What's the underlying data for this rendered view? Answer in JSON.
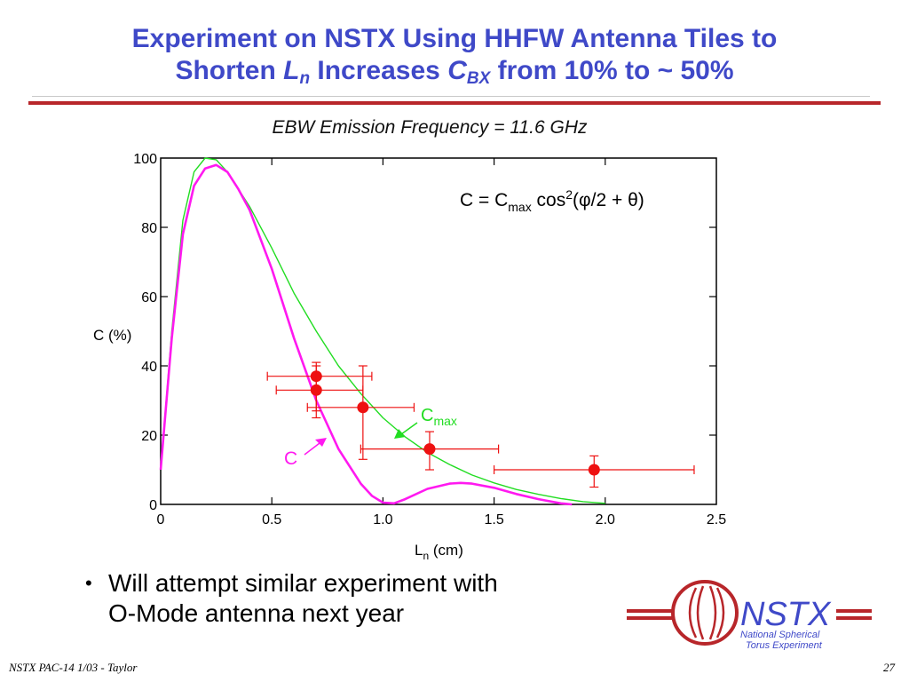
{
  "slide": {
    "title_line1": "Experiment on NSTX Using HHFW Antenna Tiles to",
    "title_line2_a": "Shorten ",
    "title_line2_L": "L",
    "title_line2_n": "n",
    "title_line2_b": " Increases ",
    "title_line2_C": "C",
    "title_line2_BX": "BX",
    "title_line2_c": " from 10% to ~ 50%",
    "bullet_symbol": "•",
    "bullet_line1": "Will attempt similar experiment with",
    "bullet_line2": "O-Mode antenna next year",
    "footer_left": "NSTX PAC-14 1/03 - Taylor",
    "footer_right": "27",
    "logo": {
      "name": "NSTX",
      "line1": "National Spherical",
      "line2": "Torus Experiment"
    }
  },
  "colors": {
    "title": "#3f49c8",
    "rule": "#b8262a",
    "c_curve": "#ff19f0",
    "cmax_curve": "#22dd22",
    "points": "#ee1111"
  },
  "chart_data": {
    "type": "scatter",
    "title": "EBW Emission Frequency = 11.6 GHz",
    "xlabel_main": "L",
    "xlabel_sub": "n",
    "xlabel_unit": " (cm)",
    "ylabel": "C (%)",
    "xlim": [
      0,
      2.5
    ],
    "ylim": [
      0,
      100
    ],
    "x_ticks": [
      {
        "value": 0,
        "label": "0"
      },
      {
        "value": 0.5,
        "label": "0.5"
      },
      {
        "value": 1.0,
        "label": "1.0"
      },
      {
        "value": 1.5,
        "label": "1.5"
      },
      {
        "value": 2.0,
        "label": "2.0"
      },
      {
        "value": 2.5,
        "label": "2.5"
      }
    ],
    "y_ticks": [
      {
        "value": 0,
        "label": "0"
      },
      {
        "value": 20,
        "label": "20"
      },
      {
        "value": 40,
        "label": "40"
      },
      {
        "value": 60,
        "label": "60"
      },
      {
        "value": 80,
        "label": "80"
      },
      {
        "value": 100,
        "label": "100"
      }
    ],
    "formula": {
      "a": "C = C",
      "sub1": "max",
      "b": " cos",
      "sup": "2",
      "c": "(φ/2 + θ)"
    },
    "annotations": {
      "cmax_main": "C",
      "cmax_sub": "max",
      "c_label": "C"
    },
    "series": [
      {
        "key": "cmax",
        "type": "line",
        "x": [
          0.0,
          0.05,
          0.1,
          0.15,
          0.2,
          0.25,
          0.3,
          0.4,
          0.5,
          0.6,
          0.7,
          0.8,
          0.9,
          1.0,
          1.1,
          1.2,
          1.3,
          1.4,
          1.5,
          1.6,
          1.7,
          1.8,
          1.9,
          2.0
        ],
        "y": [
          10,
          50,
          82,
          96,
          100,
          99.5,
          96,
          86,
          74,
          61,
          50,
          40,
          32,
          25,
          19.5,
          15,
          11.5,
          8.5,
          6.2,
          4.3,
          2.9,
          1.7,
          0.8,
          0.3
        ]
      },
      {
        "key": "c",
        "type": "line",
        "x": [
          0.0,
          0.05,
          0.1,
          0.15,
          0.2,
          0.25,
          0.3,
          0.35,
          0.4,
          0.5,
          0.6,
          0.7,
          0.8,
          0.9,
          0.95,
          1.0,
          1.05,
          1.1,
          1.2,
          1.3,
          1.35,
          1.4,
          1.5,
          1.6,
          1.7,
          1.8,
          1.85
        ],
        "y": [
          10,
          48,
          78,
          92,
          97,
          98,
          96,
          91,
          85,
          68,
          48,
          30,
          16,
          6,
          2.5,
          0.5,
          0.3,
          1.5,
          4.5,
          6.0,
          6.2,
          6.0,
          4.8,
          3.0,
          1.5,
          0.3,
          0
        ]
      },
      {
        "key": "measured",
        "type": "scatter",
        "points": [
          {
            "x": 0.7,
            "y": 37,
            "xerr": [
              0.48,
              0.95
            ],
            "yerr": [
              27,
              41
            ]
          },
          {
            "x": 0.7,
            "y": 33,
            "xerr": [
              0.52,
              0.91
            ],
            "yerr": [
              25,
              40
            ]
          },
          {
            "x": 0.91,
            "y": 28,
            "xerr": [
              0.66,
              1.14
            ],
            "yerr": [
              13,
              40
            ]
          },
          {
            "x": 1.21,
            "y": 16,
            "xerr": [
              0.9,
              1.52
            ],
            "yerr": [
              10,
              21
            ]
          },
          {
            "x": 1.95,
            "y": 10,
            "xerr": [
              1.5,
              2.4
            ],
            "yerr": [
              5,
              14
            ]
          }
        ]
      }
    ]
  }
}
